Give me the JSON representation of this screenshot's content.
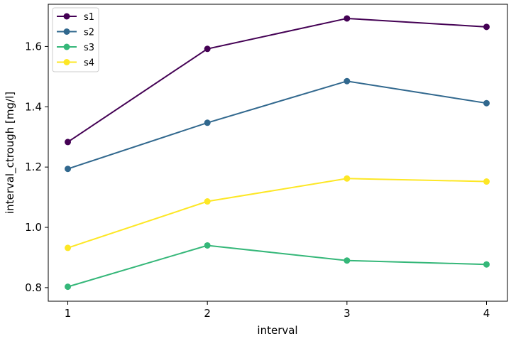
{
  "chart_data": {
    "type": "line",
    "title": "",
    "xlabel": "interval",
    "ylabel": "interval_ctrough [mg/l]",
    "x": [
      1,
      2,
      3,
      4
    ],
    "xticks": [
      "1",
      "2",
      "3",
      "4"
    ],
    "yticks": [
      "0.8",
      "1.0",
      "1.2",
      "1.4",
      "1.6"
    ],
    "xlim": [
      0.86,
      4.15
    ],
    "ylim": [
      0.755,
      1.74
    ],
    "grid": false,
    "legend_position": "top-left",
    "series": [
      {
        "name": "s1",
        "color": "#440154",
        "values": [
          1.283,
          1.592,
          1.693,
          1.665
        ]
      },
      {
        "name": "s2",
        "color": "#31688e",
        "values": [
          1.194,
          1.347,
          1.485,
          1.412
        ]
      },
      {
        "name": "s3",
        "color": "#35b779",
        "values": [
          0.803,
          0.94,
          0.89,
          0.877
        ]
      },
      {
        "name": "s4",
        "color": "#fde725",
        "values": [
          0.932,
          1.086,
          1.162,
          1.152
        ]
      }
    ]
  }
}
